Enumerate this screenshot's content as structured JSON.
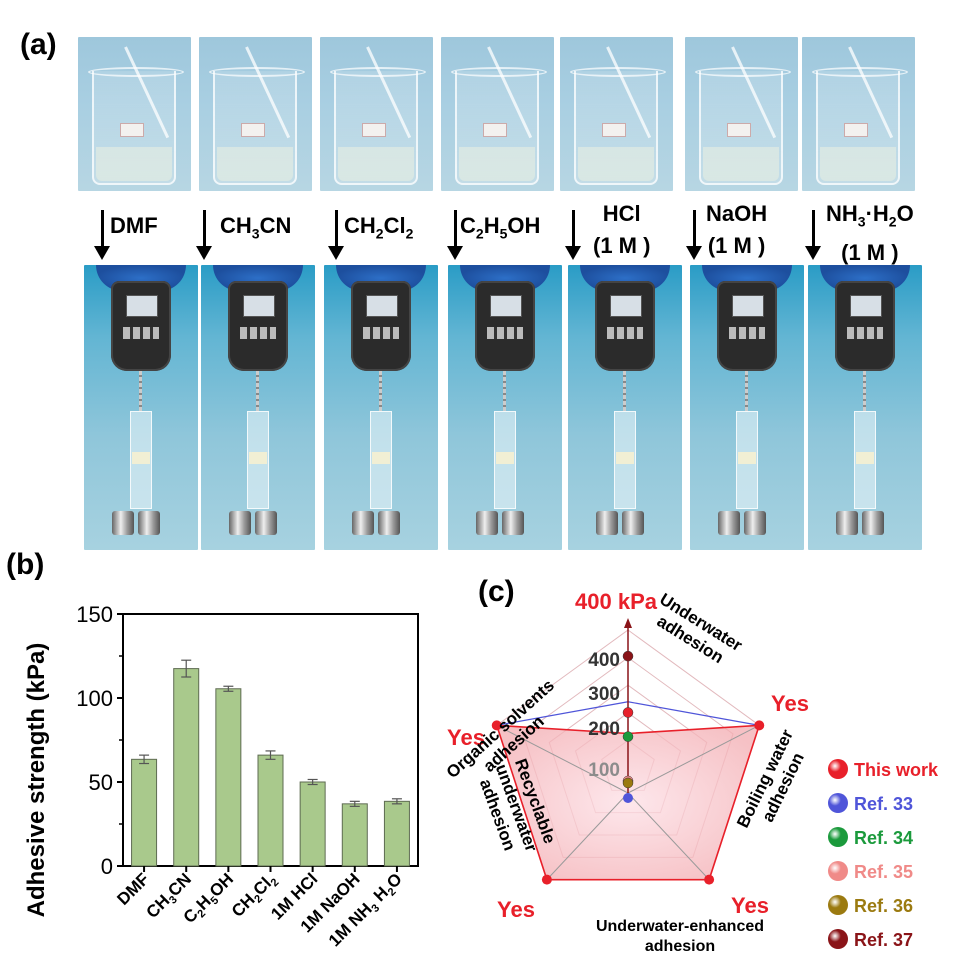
{
  "panel_labels": {
    "a": "(a)",
    "b": "(b)",
    "c": "(c)"
  },
  "panel_a": {
    "conditions": [
      {
        "line1": "DMF",
        "line2": ""
      },
      {
        "line1": "CH",
        "sub1": "3",
        "line1b": "CN",
        "line2": ""
      },
      {
        "line1": "CH",
        "sub1": "2",
        "line1b": "Cl",
        "sub2": "2",
        "line2": ""
      },
      {
        "line1": "C",
        "sub1": "2",
        "line1b": "H",
        "sub2": "5",
        "line1c": "OH",
        "line2": ""
      },
      {
        "line1": "HCl",
        "line2": "(1 M )"
      },
      {
        "line1": "NaOH",
        "line2": "(1 M )"
      },
      {
        "line1": "NH",
        "sub1": "3",
        "line1b": "·H",
        "sub2": "2",
        "line1c": "O",
        "line2": "(1 M )"
      }
    ]
  },
  "chart_data": {
    "type": "bar",
    "categories": [
      "DMF",
      "CH3CN",
      "C2H5OH",
      "CH2Cl2",
      "1M HCl",
      "1M NaOH",
      "1M NH3 H2O"
    ],
    "category_display": [
      [
        "DMF"
      ],
      [
        "CH",
        "3",
        "CN"
      ],
      [
        "C",
        "2",
        "H",
        "5",
        "OH"
      ],
      [
        "CH",
        "2",
        "Cl",
        "2"
      ],
      [
        "1M HCl"
      ],
      [
        "1M NaOH"
      ],
      [
        "1M NH",
        "3",
        " H",
        "2",
        "O"
      ]
    ],
    "values": [
      63.5,
      117.5,
      105.5,
      66,
      50,
      37,
      38.5
    ],
    "errors": [
      2.5,
      5,
      1.5,
      2.5,
      1.5,
      1.5,
      1.5
    ],
    "ylabel": "Adhesive strength (kPa)",
    "ylim": [
      0,
      150
    ],
    "yticks": [
      0,
      50,
      100,
      150
    ],
    "bar_color": "#a9c98c",
    "grid": false
  },
  "radar": {
    "type": "radar",
    "axes": [
      {
        "label": [
          "Underwater",
          "adhesion"
        ],
        "end_label": "400 kPa"
      },
      {
        "label": [
          "Boiling water",
          "adhesion"
        ],
        "end_label": "Yes"
      },
      {
        "label": [
          "Underwater-enhanced",
          "adhesion"
        ],
        "end_label": "Yes"
      },
      {
        "label": [
          "Recyclable",
          "underwater",
          "adhesion"
        ],
        "end_label": "Yes"
      },
      {
        "label": [
          "Organic solvents",
          "adhesion"
        ],
        "end_label": "Yes"
      }
    ],
    "radial_ticks": [
      "100",
      "200",
      "300",
      "400"
    ],
    "series": [
      {
        "name": "This work",
        "color": "#e8202a",
        "values": [
          200,
          1,
          1,
          1,
          1
        ]
      },
      {
        "name": "Ref. 33",
        "color": "#4f55d9",
        "values": [
          35,
          0,
          0,
          0,
          1
        ]
      },
      {
        "name": "Ref. 34",
        "color": "#1b9a3c",
        "values": [
          140,
          0,
          0,
          0,
          0
        ]
      },
      {
        "name": "Ref. 35",
        "color": "#f08a88",
        "values": [
          30,
          0,
          0,
          0,
          0
        ]
      },
      {
        "name": "Ref. 36",
        "color": "#9b7a10",
        "values": [
          25,
          0,
          0,
          0,
          0
        ]
      },
      {
        "name": "Ref. 37",
        "color": "#8a1418",
        "values": [
          340,
          0,
          0,
          0,
          0
        ]
      }
    ]
  }
}
